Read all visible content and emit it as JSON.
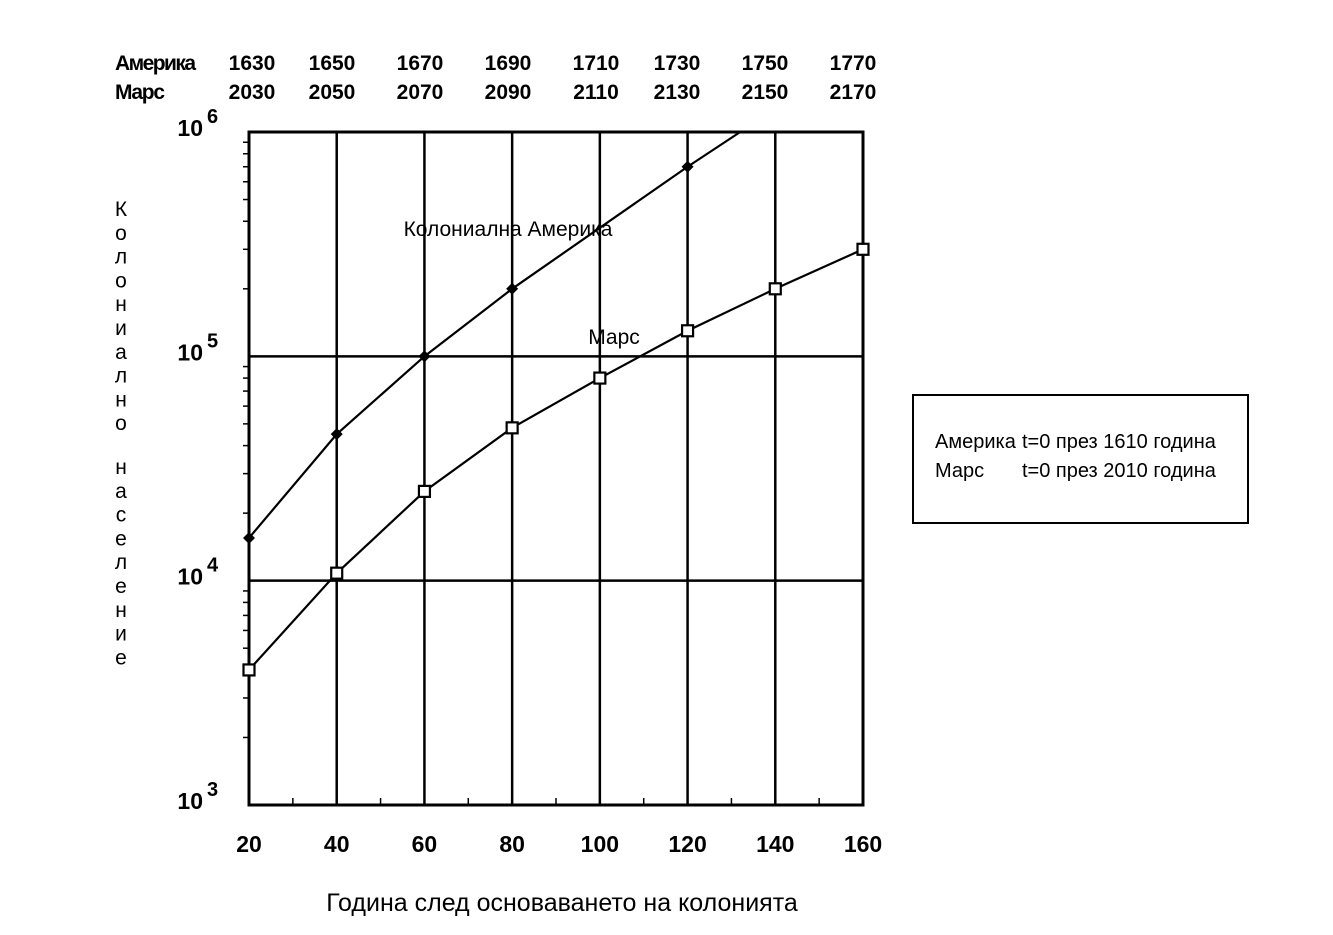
{
  "chart_data": {
    "type": "line",
    "xlabel": "Година след основаването на колонията",
    "ylabel": "Колониално население",
    "xlim": [
      20,
      160
    ],
    "ylim": [
      1000,
      1000000
    ],
    "y_scale": "log",
    "grid": true,
    "x_ticks": [
      20,
      40,
      60,
      80,
      100,
      120,
      140,
      160
    ],
    "y_ticks": [
      {
        "base": "10",
        "exp": "3"
      },
      {
        "base": "10",
        "exp": "4"
      },
      {
        "base": "10",
        "exp": "5"
      },
      {
        "base": "10",
        "exp": "6"
      }
    ],
    "top_axes": [
      {
        "label": "Америка",
        "values": [
          "1630",
          "1650",
          "1670",
          "1690",
          "1710",
          "1730",
          "1750",
          "1770"
        ]
      },
      {
        "label": "Марс",
        "values": [
          "2030",
          "2050",
          "2070",
          "2090",
          "2110",
          "2130",
          "2150",
          "2170"
        ]
      }
    ],
    "series": [
      {
        "name": "Колониална Америка",
        "marker": "diamond",
        "x": [
          20,
          40,
          60,
          80,
          120,
          132
        ],
        "y": [
          15500,
          45000,
          100000,
          200000,
          700000,
          1000000
        ]
      },
      {
        "name": "Марс",
        "marker": "square",
        "x": [
          20,
          40,
          60,
          80,
          100,
          120,
          140,
          160
        ],
        "y": [
          4000,
          10800,
          25000,
          48000,
          80000,
          130000,
          200000,
          300000
        ]
      }
    ],
    "legend": {
      "placement": "right",
      "lines": [
        {
          "a": "Америка",
          "b": "t=0 през 1610 година"
        },
        {
          "a": "Марс",
          "b": "t=0 през 2010 година"
        }
      ]
    }
  }
}
